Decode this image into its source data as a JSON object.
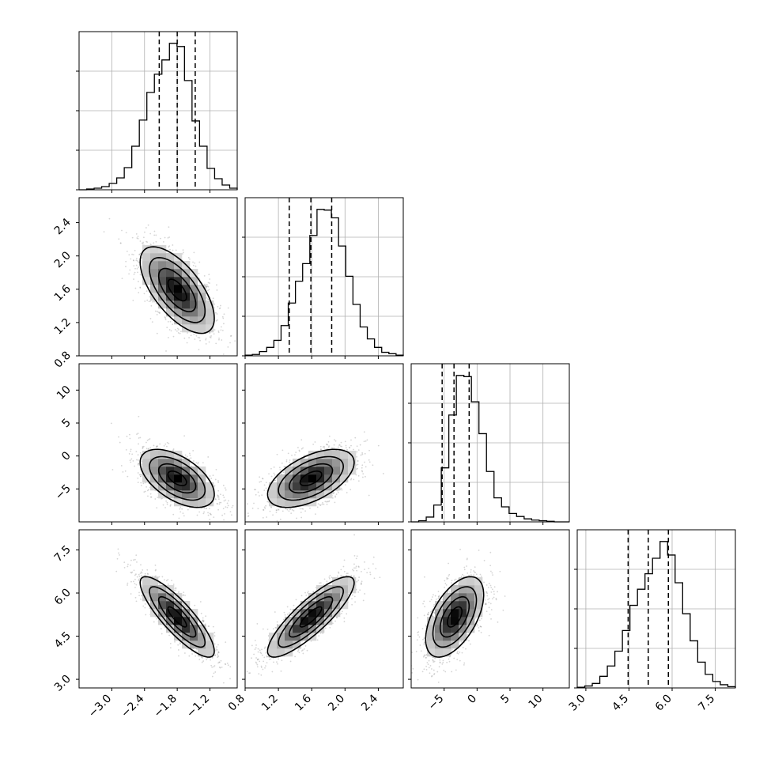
{
  "chart_data": {
    "type": "corner",
    "title": "",
    "parameters": [
      {
        "index": 0,
        "range": [
          -3.6,
          -0.7
        ],
        "ticks": [
          "-3.0",
          "-2.4",
          "-1.8",
          "-1.2"
        ],
        "tick_values": [
          -3.0,
          -2.4,
          -1.8,
          -1.2
        ],
        "quantiles": [
          -2.13,
          -1.8,
          -1.47
        ],
        "mean": -1.8,
        "sd": 0.34
      },
      {
        "index": 1,
        "range": [
          0.8,
          2.7
        ],
        "ticks": [
          "0.8",
          "1.2",
          "1.6",
          "2.0",
          "2.4"
        ],
        "tick_values": [
          0.8,
          1.2,
          1.6,
          2.0,
          2.4
        ],
        "quantiles": [
          1.33,
          1.59,
          1.84
        ],
        "mean": 1.59,
        "sd": 0.26
      },
      {
        "index": 2,
        "range": [
          -10,
          14
        ],
        "ticks": [
          "-5",
          "0",
          "5",
          "10"
        ],
        "tick_values": [
          -5,
          0,
          5,
          10
        ],
        "quantiles": [
          -5.3,
          -3.5,
          -1.2
        ],
        "mean": -3.4,
        "sd": 2.2
      },
      {
        "index": 3,
        "range": [
          2.7,
          8.2
        ],
        "ticks": [
          "3.0",
          "4.5",
          "6.0",
          "7.5"
        ],
        "tick_values": [
          3.0,
          4.5,
          6.0,
          7.5
        ],
        "quantiles": [
          4.47,
          5.17,
          5.87
        ],
        "mean": 5.17,
        "sd": 0.7
      }
    ],
    "histograms": [
      {
        "param": 0,
        "bins": [
          -3.6,
          -0.7
        ],
        "counts": [
          0,
          1,
          2,
          4,
          8,
          15,
          28,
          55,
          88,
          123,
          146,
          164,
          185,
          181,
          138,
          87,
          55,
          27,
          14,
          6,
          2
        ]
      },
      {
        "param": 1,
        "bins": [
          0.8,
          2.7
        ],
        "counts": [
          1,
          2,
          6,
          12,
          22,
          43,
          75,
          106,
          131,
          171,
          208,
          207,
          196,
          156,
          113,
          73,
          41,
          24,
          12,
          5,
          3,
          1
        ]
      },
      {
        "param": 2,
        "bins": [
          -10,
          14
        ],
        "counts": [
          0,
          2,
          8,
          28,
          90,
          178,
          244,
          242,
          200,
          147,
          84,
          40,
          25,
          14,
          9,
          5,
          3,
          2,
          1,
          0,
          0
        ]
      },
      {
        "param": 3,
        "bins": [
          2.7,
          8.2
        ],
        "counts": [
          1,
          3,
          7,
          18,
          34,
          57,
          89,
          128,
          153,
          177,
          201,
          227,
          206,
          163,
          115,
          73,
          40,
          21,
          10,
          5,
          2
        ]
      }
    ],
    "correlations": [
      {
        "row": 1,
        "col": 0,
        "rho": -0.65
      },
      {
        "row": 2,
        "col": 0,
        "rho": -0.55
      },
      {
        "row": 2,
        "col": 1,
        "rho": 0.55
      },
      {
        "row": 3,
        "col": 0,
        "rho": -0.85
      },
      {
        "row": 3,
        "col": 1,
        "rho": 0.85
      },
      {
        "row": 3,
        "col": 2,
        "rho": 0.55
      }
    ],
    "contour_levels_sigma": [
      0.5,
      1.0,
      1.5,
      2.0
    ],
    "colors": {
      "ink": "#000000",
      "grid": "#b0b0b0",
      "points": "#888888"
    }
  }
}
